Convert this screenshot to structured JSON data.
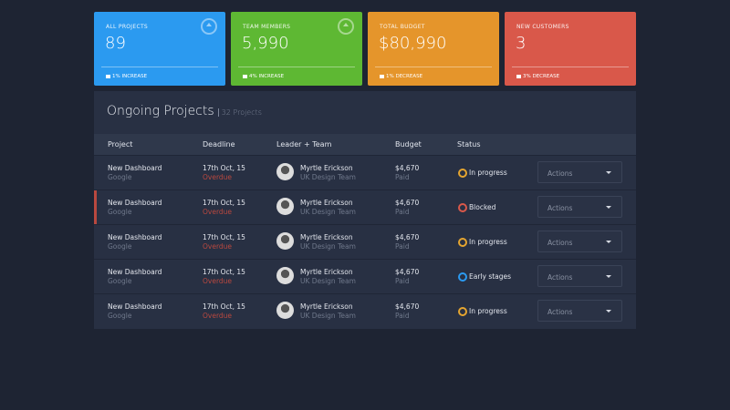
{
  "cards": [
    {
      "label": "ALL PROJECTS",
      "value": "89",
      "footer": "1% INCREASE",
      "color": "#2b9af0"
    },
    {
      "label": "TEAM MEMBERS",
      "value": "5,990",
      "footer": "4% INCREASE",
      "color": "#5eb833"
    },
    {
      "label": "TOTAL BUDGET",
      "value": "$80,990",
      "footer": "1% DECREASE",
      "color": "#e5952b"
    },
    {
      "label": "NEW CUSTOMERS",
      "value": "3",
      "footer": "3% DECREASE",
      "color": "#d9584a"
    }
  ],
  "table": {
    "title": "Ongoing Projects",
    "subtitle": "32 Projects",
    "headers": [
      "Project",
      "Deadline",
      "Leader + Team",
      "Budget",
      "Status"
    ],
    "rows": [
      {
        "project": "New Dashboard",
        "client": "Google",
        "deadline": "17th Oct, 15",
        "deadline_note": "Overdue",
        "leader": "Myrtle Erickson",
        "team": "UK Design Team",
        "budget": "$4,670",
        "budget_note": "Paid",
        "status": "In progress",
        "status_color": "#e5a530",
        "action": "Actions"
      },
      {
        "project": "New Dashboard",
        "client": "Google",
        "deadline": "17th Oct, 15",
        "deadline_note": "Overdue",
        "leader": "Myrtle Erickson",
        "team": "UK Design Team",
        "budget": "$4,670",
        "budget_note": "Paid",
        "status": "Blocked",
        "status_color": "#d9584a",
        "action": "Actions"
      },
      {
        "project": "New Dashboard",
        "client": "Google",
        "deadline": "17th Oct, 15",
        "deadline_note": "Overdue",
        "leader": "Myrtle Erickson",
        "team": "UK Design Team",
        "budget": "$4,670",
        "budget_note": "Paid",
        "status": "In progress",
        "status_color": "#e5a530",
        "action": "Actions"
      },
      {
        "project": "New Dashboard",
        "client": "Google",
        "deadline": "17th Oct, 15",
        "deadline_note": "Overdue",
        "leader": "Myrtle Erickson",
        "team": "UK Design Team",
        "budget": "$4,670",
        "budget_note": "Paid",
        "status": "Early stages",
        "status_color": "#2b9af0",
        "action": "Actions"
      },
      {
        "project": "New Dashboard",
        "client": "Google",
        "deadline": "17th Oct, 15",
        "deadline_note": "Overdue",
        "leader": "Myrtle Erickson",
        "team": "UK Design Team",
        "budget": "$4,670",
        "budget_note": "Paid",
        "status": "In progress",
        "status_color": "#e5a530",
        "action": "Actions"
      }
    ]
  }
}
